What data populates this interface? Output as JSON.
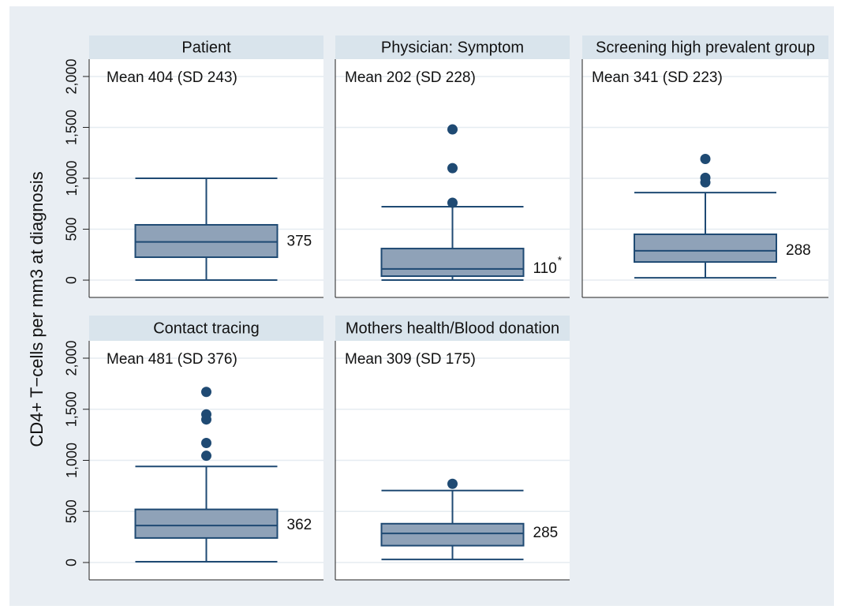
{
  "chart_data": {
    "type": "box",
    "ylabel": "CD4+ T−cells per mm3 at diagnosis",
    "ylim": [
      -170,
      2170
    ],
    "yticks": [
      0,
      500,
      {
        "value": 1000,
        "label": "1,000"
      },
      {
        "value": 1500,
        "label": "1,500"
      },
      {
        "value": 2000,
        "label": "2,000"
      }
    ],
    "grid": true,
    "box_color": "#8fa2b8",
    "line_color": "#1f4a73",
    "panels": [
      {
        "title": "Patient",
        "annotation": "Mean 404 (SD 243)",
        "whisker_low": 0,
        "q1": 225,
        "median": 375,
        "q3": 543,
        "whisker_high": 1000,
        "outliers": []
      },
      {
        "title": "Physician: Symptom",
        "annotation": "Mean 202 (SD 228)",
        "whisker_low": 0,
        "q1": 39,
        "median": 110,
        "q3": 310,
        "whisker_high": 721,
        "outliers": [
          1480,
          1100,
          760
        ],
        "median_mark": "*"
      },
      {
        "title": "Screening high prevalent group",
        "annotation": "Mean 341 (SD 223)",
        "whisker_low": 23,
        "q1": 178,
        "median": 288,
        "q3": 450,
        "whisker_high": 860,
        "outliers": [
          1190,
          1005,
          960
        ]
      },
      {
        "title": "Contact tracing",
        "annotation": "Mean 481 (SD 376)",
        "whisker_low": 8,
        "q1": 240,
        "median": 362,
        "q3": 520,
        "whisker_high": 940,
        "outliers": [
          1670,
          1450,
          1400,
          1170,
          1045
        ]
      },
      {
        "title": "Mothers health/Blood donation",
        "annotation": "Mean 309 (SD 175)",
        "whisker_low": 30,
        "q1": 165,
        "median": 285,
        "q3": 380,
        "whisker_high": 705,
        "outliers": [
          770
        ]
      }
    ]
  }
}
